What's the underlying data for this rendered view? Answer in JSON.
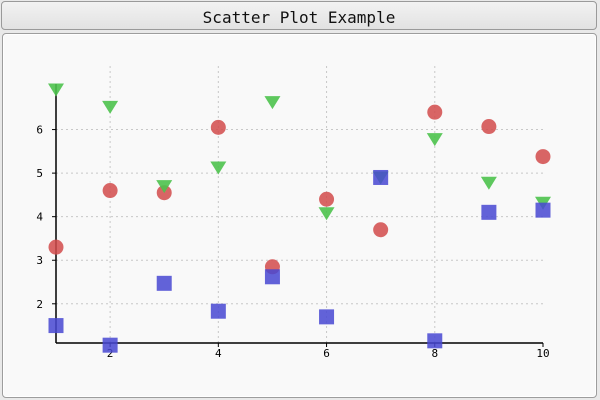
{
  "window": {
    "title": "Scatter Plot Example"
  },
  "chart_data": {
    "type": "scatter",
    "title": "Scatter Plot Example",
    "xlabel": "",
    "ylabel": "",
    "xlim": [
      1,
      10
    ],
    "ylim": [
      1.1,
      7.0
    ],
    "grid": true,
    "x_ticks": [
      2,
      4,
      6,
      8,
      10
    ],
    "y_ticks": [
      2,
      3,
      4,
      5,
      6
    ],
    "series": [
      {
        "name": "circles",
        "marker": "circle",
        "color": "#d24b4b",
        "points": [
          [
            1,
            3.3
          ],
          [
            2,
            4.6
          ],
          [
            3,
            4.55
          ],
          [
            4,
            6.05
          ],
          [
            5,
            2.85
          ],
          [
            6,
            4.4
          ],
          [
            7,
            3.7
          ],
          [
            8,
            6.4
          ],
          [
            9,
            6.07
          ],
          [
            10,
            5.38
          ]
        ]
      },
      {
        "name": "triangles",
        "marker": "triangle-down",
        "color": "#4cc24c",
        "points": [
          [
            1,
            6.92
          ],
          [
            2,
            6.52
          ],
          [
            3,
            4.7
          ],
          [
            4,
            5.13
          ],
          [
            5,
            6.63
          ],
          [
            6,
            4.08
          ],
          [
            7,
            4.9
          ],
          [
            8,
            5.78
          ],
          [
            9,
            4.78
          ],
          [
            10,
            4.32
          ]
        ]
      },
      {
        "name": "squares",
        "marker": "square",
        "color": "#4848d2",
        "points": [
          [
            1,
            1.5
          ],
          [
            2,
            1.05
          ],
          [
            3,
            2.47
          ],
          [
            4,
            1.83
          ],
          [
            5,
            2.62
          ],
          [
            6,
            1.7
          ],
          [
            7,
            4.9
          ],
          [
            8,
            1.15
          ],
          [
            9,
            4.1
          ],
          [
            10,
            4.15
          ]
        ]
      }
    ]
  }
}
